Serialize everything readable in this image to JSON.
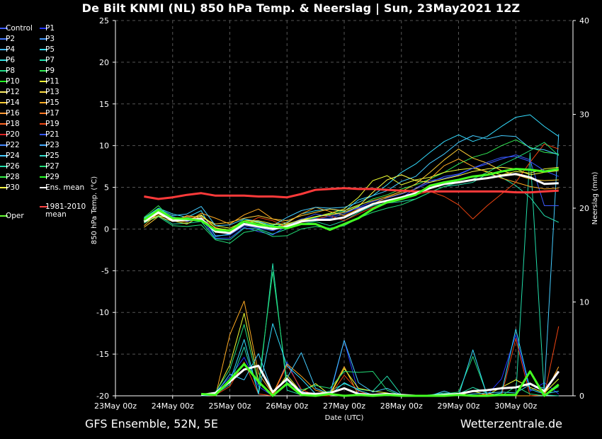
{
  "title": "De Bilt KNMI  (NL)  850 hPa Temp. & Neerslag | Sun, 23May2021 12Z",
  "footer": {
    "left": "GFS Ensemble, 52N, 5E",
    "right": "Wetterzentrale.de"
  },
  "legend": [
    {
      "name": "Control",
      "color": "#3d5cff"
    },
    {
      "name": "P1",
      "color": "#2233ff"
    },
    {
      "name": "P2",
      "color": "#4477ff"
    },
    {
      "name": "P3",
      "color": "#4499ff"
    },
    {
      "name": "P4",
      "color": "#44bbff"
    },
    {
      "name": "P5",
      "color": "#33ddff"
    },
    {
      "name": "P6",
      "color": "#33dddd"
    },
    {
      "name": "P7",
      "color": "#22ddaa"
    },
    {
      "name": "P8",
      "color": "#22dd88"
    },
    {
      "name": "P9",
      "color": "#33ee55"
    },
    {
      "name": "P10",
      "color": "#22ff22"
    },
    {
      "name": "P11",
      "color": "#eeff33"
    },
    {
      "name": "P12",
      "color": "#ffee66"
    },
    {
      "name": "P13",
      "color": "#ffdd44"
    },
    {
      "name": "P14",
      "color": "#ffcc33"
    },
    {
      "name": "P15",
      "color": "#ffaa22"
    },
    {
      "name": "P16",
      "color": "#ff9933"
    },
    {
      "name": "P17",
      "color": "#ff7722"
    },
    {
      "name": "P18",
      "color": "#ff6622"
    },
    {
      "name": "P19",
      "color": "#ee4411"
    },
    {
      "name": "P20",
      "color": "#dd2222"
    },
    {
      "name": "P21",
      "color": "#3355ff"
    },
    {
      "name": "P22",
      "color": "#4488ff"
    },
    {
      "name": "P23",
      "color": "#44aaff"
    },
    {
      "name": "P24",
      "color": "#44ccff"
    },
    {
      "name": "P25",
      "color": "#33ddcc"
    },
    {
      "name": "P26",
      "color": "#22ddaa"
    },
    {
      "name": "P27",
      "color": "#22dd77"
    },
    {
      "name": "P28",
      "color": "#33ee44"
    },
    {
      "name": "P29",
      "color": "#22ff22"
    },
    {
      "name": "P30",
      "color": "#ffff44"
    },
    {
      "name": "Ens. mean",
      "color": "#ffffff"
    },
    {
      "name": "Oper",
      "color": "#66ff33"
    },
    {
      "name": "1981-2010 mean",
      "color": "#ff4444"
    }
  ],
  "chart_data": {
    "type": "line",
    "xlabel": "Date (UTC)",
    "ylabel": "850 hPa Temp. (°C)",
    "ylabel_right": "Neerslag (mm)",
    "x_ticks": [
      "23May 00z",
      "24May 00z",
      "25May 00z",
      "26May 00z",
      "27May 00z",
      "28May 00z",
      "29May 00z",
      "30May 00z"
    ],
    "ylim": [
      -20,
      25
    ],
    "y_ticks": [
      25,
      20,
      15,
      10,
      5,
      0,
      -5,
      -10,
      -15,
      -20
    ],
    "ylim_right": [
      0,
      40
    ],
    "y_ticks_right": [
      40,
      30,
      20,
      10,
      0
    ],
    "x_hours": [
      12,
      18,
      24,
      30,
      36,
      42,
      48,
      54,
      60,
      66,
      72,
      78,
      84,
      90,
      96,
      102,
      108,
      114,
      120,
      126,
      132,
      138,
      144,
      150,
      156,
      162,
      168,
      174,
      180,
      186
    ],
    "series": [
      {
        "name": "1981-2010 mean",
        "color": "#ff3a3a",
        "width": 3,
        "values": [
          3.9,
          3.6,
          3.8,
          4.1,
          4.3,
          4.0,
          4.0,
          4.0,
          3.9,
          3.9,
          3.8,
          4.2,
          4.7,
          4.8,
          4.9,
          4.8,
          4.8,
          4.7,
          4.6,
          4.5,
          4.5,
          4.5,
          4.5,
          4.5,
          4.5,
          4.5,
          4.4,
          4.4,
          4.5,
          4.6
        ]
      },
      {
        "name": "Ens. mean",
        "color": "#ffffff",
        "width": 3,
        "values": [
          0.9,
          2.0,
          1.0,
          1.1,
          1.2,
          -0.3,
          -0.5,
          0.6,
          0.3,
          0.0,
          0.3,
          0.9,
          1.1,
          1.1,
          1.4,
          2.2,
          3.0,
          3.4,
          3.8,
          4.3,
          4.9,
          5.4,
          5.6,
          5.9,
          6.1,
          6.4,
          6.6,
          6.2,
          5.4,
          5.5
        ]
      },
      {
        "name": "Oper",
        "color": "#44ff22",
        "width": 3,
        "values": [
          1.1,
          2.3,
          1.3,
          1.2,
          1.0,
          -0.1,
          -0.2,
          0.9,
          0.5,
          0.3,
          0.1,
          0.6,
          0.6,
          -0.1,
          0.6,
          1.3,
          2.4,
          3.2,
          3.6,
          4.1,
          5.2,
          5.6,
          5.9,
          6.3,
          6.5,
          6.9,
          7.2,
          7.1,
          6.9,
          7.2
        ]
      },
      {
        "name": "Control",
        "color": "#3d5cff",
        "width": 1,
        "values": [
          1.0,
          2.1,
          1.2,
          1.0,
          1.5,
          -0.8,
          -0.7,
          0.4,
          0.1,
          -0.2,
          0.5,
          1.2,
          1.3,
          1.3,
          1.8,
          2.6,
          3.3,
          3.7,
          4.2,
          4.8,
          5.6,
          6.3,
          6.6,
          7.3,
          7.8,
          8.4,
          8.9,
          8.3,
          2.8,
          2.8
        ]
      },
      {
        "name": "P5",
        "color": "#33ddff",
        "width": 1,
        "values": [
          1.3,
          2.5,
          1.8,
          1.4,
          2.2,
          -0.9,
          -0.6,
          0.8,
          0.9,
          0.1,
          0.8,
          1.8,
          2.2,
          2.4,
          2.1,
          3.5,
          4.0,
          5.3,
          6.8,
          7.8,
          9.2,
          10.5,
          11.3,
          10.5,
          11.1,
          12.3,
          13.4,
          13.7,
          12.3,
          11.1
        ]
      },
      {
        "name": "P7",
        "color": "#22ddaa",
        "width": 1,
        "values": [
          0.7,
          1.6,
          0.6,
          0.7,
          0.9,
          -1.2,
          -1.3,
          0.1,
          0.0,
          -0.6,
          0.0,
          0.6,
          0.9,
          0.4,
          1.0,
          2.0,
          2.8,
          3.1,
          3.3,
          3.6,
          4.4,
          5.1,
          5.3,
          5.6,
          6.6,
          6.2,
          5.2,
          3.8,
          1.6,
          0.8
        ]
      },
      {
        "name": "P9",
        "color": "#33ee55",
        "width": 1,
        "values": [
          1.4,
          2.8,
          1.0,
          1.4,
          1.1,
          -0.4,
          -0.2,
          1.2,
          0.7,
          0.5,
          0.6,
          1.0,
          1.4,
          1.8,
          2.2,
          2.8,
          3.6,
          4.1,
          4.8,
          5.3,
          6.0,
          6.8,
          7.8,
          8.6,
          9.1,
          10.0,
          10.7,
          9.8,
          9.2,
          9.0
        ]
      },
      {
        "name": "P11",
        "color": "#eeff33",
        "width": 1,
        "values": [
          0.9,
          1.8,
          1.0,
          0.6,
          1.6,
          0.4,
          0.1,
          0.9,
          0.8,
          0.2,
          0.5,
          1.0,
          1.5,
          1.9,
          2.4,
          3.8,
          5.8,
          6.4,
          5.3,
          5.9,
          6.2,
          6.8,
          7.1,
          7.3,
          6.9,
          6.5,
          6.9,
          6.7,
          7.2,
          7.4
        ]
      },
      {
        "name": "P14",
        "color": "#ffcc33",
        "width": 1,
        "values": [
          0.2,
          1.5,
          0.9,
          1.6,
          1.4,
          0.6,
          0.8,
          1.3,
          1.6,
          1.2,
          1.0,
          1.6,
          2.0,
          2.4,
          2.2,
          2.9,
          3.4,
          3.9,
          4.5,
          5.4,
          6.8,
          8.3,
          9.6,
          8.5,
          7.9,
          7.0,
          6.5,
          6.0,
          5.8,
          5.9
        ]
      },
      {
        "name": "P15",
        "color": "#ffaa22",
        "width": 1,
        "values": [
          0.4,
          1.9,
          1.1,
          0.8,
          1.9,
          1.3,
          0.6,
          1.7,
          2.4,
          1.2,
          0.7,
          1.8,
          2.6,
          2.1,
          1.6,
          2.4,
          3.0,
          3.8,
          4.3,
          4.8,
          6.0,
          7.6,
          8.4,
          7.5,
          6.8,
          6.1,
          5.6,
          5.1,
          4.8,
          4.9
        ]
      },
      {
        "name": "P19",
        "color": "#ee4411",
        "width": 1,
        "values": [
          1.2,
          2.2,
          0.9,
          1.5,
          1.2,
          0.2,
          -0.3,
          0.5,
          1.4,
          1.0,
          0.2,
          0.8,
          1.2,
          1.6,
          1.0,
          1.8,
          2.6,
          3.1,
          3.5,
          4.1,
          4.5,
          3.9,
          2.9,
          1.2,
          2.8,
          4.2,
          5.6,
          8.0,
          10.2,
          9.6
        ]
      },
      {
        "name": "P21",
        "color": "#3355ff",
        "width": 1,
        "values": [
          1.0,
          1.9,
          1.5,
          0.9,
          1.3,
          -1.1,
          -1.1,
          0.2,
          -0.3,
          -0.7,
          0.4,
          1.1,
          1.8,
          1.5,
          2.0,
          2.5,
          3.0,
          3.4,
          3.7,
          4.9,
          5.8,
          6.1,
          6.5,
          7.3,
          8.0,
          8.6,
          8.7,
          8.1,
          7.0,
          6.3
        ]
      },
      {
        "name": "P24",
        "color": "#44ccff",
        "width": 1,
        "values": [
          1.3,
          2.4,
          1.6,
          1.8,
          2.7,
          0.4,
          0.5,
          1.2,
          0.9,
          0.4,
          1.4,
          2.2,
          2.6,
          2.5,
          2.6,
          3.2,
          4.0,
          4.6,
          5.7,
          6.3,
          7.9,
          9.0,
          10.4,
          11.2,
          10.8,
          11.2,
          11.1,
          9.7,
          9.5,
          8.9
        ]
      },
      {
        "name": "P27",
        "color": "#22dd77",
        "width": 1,
        "values": [
          0.8,
          1.5,
          0.4,
          0.3,
          0.5,
          -1.3,
          -1.7,
          -0.4,
          -0.1,
          -0.9,
          -0.8,
          0.0,
          0.3,
          0.1,
          0.4,
          1.3,
          2.0,
          2.5,
          2.9,
          3.6,
          4.4,
          5.1,
          5.6,
          6.0,
          6.8,
          7.7,
          8.5,
          9.4,
          10.4,
          8.8
        ]
      },
      {
        "name": "P30",
        "color": "#ffff44",
        "width": 1,
        "values": [
          0.8,
          1.6,
          1.2,
          1.0,
          1.7,
          0.1,
          -0.1,
          1.0,
          1.0,
          0.6,
          0.6,
          1.1,
          1.5,
          1.7,
          2.0,
          2.7,
          4.4,
          5.9,
          6.5,
          5.8,
          5.6,
          6.0,
          6.4,
          6.9,
          7.2,
          7.4,
          7.2,
          6.5,
          6.8,
          7.0
        ]
      }
    ],
    "precip_series": [
      {
        "name": "Ens. mean",
        "color": "#ffffff",
        "width": 3,
        "values": [
          0.1,
          0.3,
          1.5,
          2.8,
          3.2,
          0.4,
          1.8,
          0.3,
          0.2,
          0.3,
          0.8,
          0.2,
          0.1,
          0.2,
          0.1,
          0.0,
          0.0,
          0.1,
          0.2,
          0.5,
          0.6,
          0.8,
          0.9,
          1.3,
          0.5,
          2.6
        ]
      },
      {
        "name": "Oper",
        "color": "#44ff22",
        "width": 3,
        "values": [
          0.2,
          0.1,
          1.7,
          3.4,
          1.5,
          0.0,
          1.3,
          0.1,
          0.0,
          0.2,
          0.0,
          0.1,
          0.0,
          0.1,
          0.0,
          0.0,
          0.0,
          0.0,
          0.1,
          0.0,
          0.0,
          0.1,
          0.1,
          2.6,
          0.0,
          1.2
        ]
      },
      {
        "name": "P1",
        "color": "#2233ff",
        "width": 1,
        "values": [
          0.0,
          0.4,
          2.0,
          4.1,
          1.0,
          0.0,
          3.6,
          0.5,
          0.0,
          0.0,
          5.9,
          0.3,
          0.0,
          0.0,
          0.0,
          0.0,
          0.0,
          0.0,
          0.0,
          0.0,
          0.1,
          1.8,
          6.5,
          0.5,
          1.4,
          0.2
        ]
      },
      {
        "name": "P7",
        "color": "#22ddaa",
        "width": 1,
        "values": [
          0.0,
          0.2,
          1.2,
          5.2,
          0.3,
          14.1,
          0.6,
          0.1,
          0.2,
          0.5,
          1.3,
          0.7,
          0.5,
          2.1,
          0.1,
          0.0,
          0.1,
          0.3,
          0.2,
          0.9,
          0.3,
          0.0,
          0.0,
          25.9,
          0.1,
          0.0
        ]
      },
      {
        "name": "P15",
        "color": "#ffaa22",
        "width": 1,
        "values": [
          0.1,
          0.0,
          6.5,
          10.1,
          2.4,
          0.2,
          3.4,
          2.1,
          0.6,
          0.2,
          3.1,
          0.1,
          0.0,
          0.2,
          0.0,
          0.0,
          0.0,
          0.2,
          0.0,
          0.0,
          0.2,
          0.1,
          0.0,
          0.0,
          0.1,
          3.1
        ]
      },
      {
        "name": "P11",
        "color": "#eeff33",
        "width": 1,
        "values": [
          0.0,
          0.3,
          3.3,
          8.8,
          1.6,
          0.1,
          2.2,
          0.4,
          1.3,
          0.1,
          2.9,
          0.8,
          0.5,
          0.3,
          0.0,
          0.0,
          0.0,
          0.1,
          0.0,
          0.5,
          0.1,
          0.9,
          1.7,
          0.9,
          0.3,
          1.8
        ]
      },
      {
        "name": "P19",
        "color": "#ee4411",
        "width": 1,
        "values": [
          0.0,
          0.1,
          1.0,
          3.6,
          0.2,
          0.0,
          3.3,
          0.7,
          0.0,
          0.0,
          2.2,
          0.5,
          0.0,
          0.2,
          0.0,
          0.0,
          0.0,
          0.0,
          0.0,
          0.0,
          0.2,
          0.0,
          6.1,
          0.0,
          0.1,
          7.4
        ]
      },
      {
        "name": "P24",
        "color": "#44ccff",
        "width": 1,
        "values": [
          0.0,
          0.2,
          2.3,
          1.7,
          4.5,
          0.4,
          1.9,
          4.6,
          0.8,
          0.2,
          5.9,
          1.4,
          0.4,
          0.8,
          0.1,
          0.0,
          0.0,
          0.5,
          0.0,
          0.2,
          0.3,
          0.4,
          0.3,
          1.2,
          0.8,
          27.9
        ]
      },
      {
        "name": "P27",
        "color": "#22dd77",
        "width": 1,
        "values": [
          0.1,
          0.4,
          2.8,
          7.6,
          1.2,
          13.2,
          1.4,
          0.6,
          1.1,
          0.8,
          2.6,
          2.5,
          2.6,
          0.6,
          0.0,
          0.0,
          0.1,
          0.2,
          0.4,
          4.2,
          0.1,
          0.0,
          1.0,
          0.2,
          0.0,
          1.0
        ]
      },
      {
        "name": "P5",
        "color": "#33ddff",
        "width": 1,
        "values": [
          0.0,
          0.1,
          1.5,
          6.0,
          0.2,
          7.7,
          3.2,
          1.8,
          0.2,
          0.1,
          1.4,
          0.6,
          0.1,
          0.0,
          0.0,
          0.0,
          0.0,
          0.1,
          0.0,
          4.9,
          0.0,
          0.3,
          7.1,
          0.7,
          0.2,
          0.5
        ]
      }
    ],
    "precip_x_hours": [
      36,
      42,
      48,
      54,
      60,
      66,
      72,
      78,
      84,
      90,
      96,
      102,
      108,
      114,
      120,
      126,
      132,
      138,
      144,
      150,
      156,
      162,
      168,
      174,
      180,
      186
    ],
    "grid": true
  }
}
